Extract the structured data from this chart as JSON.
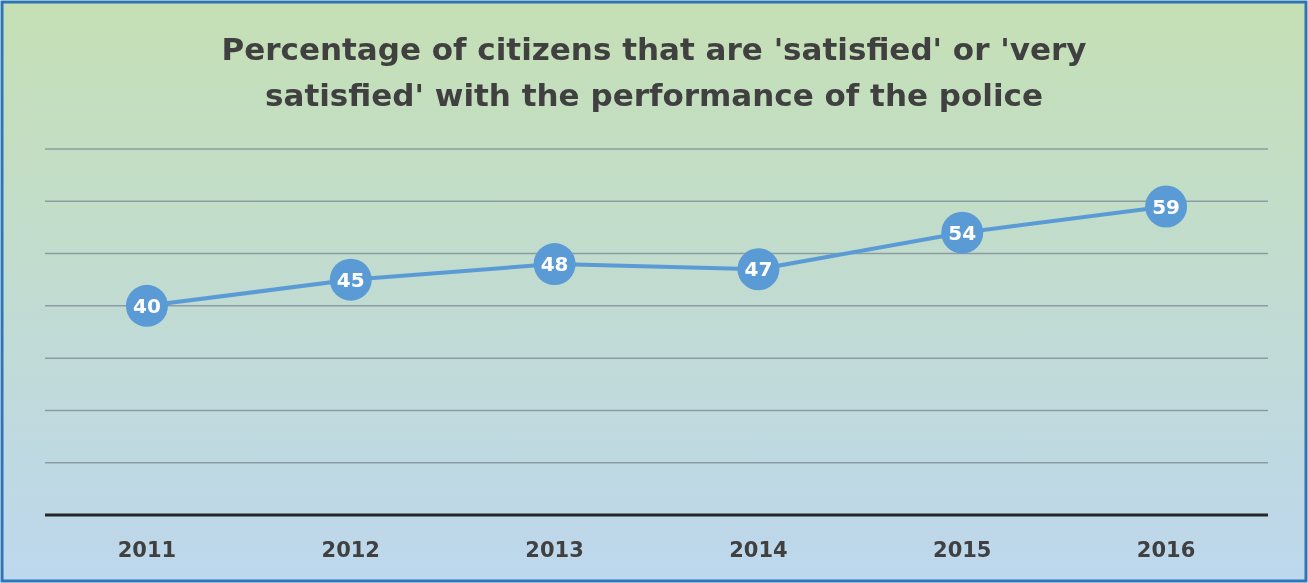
{
  "chart_data": {
    "type": "line",
    "title": "Percentage of citizens that are 'satisfied' or 'very satisfied' with the performance of the police",
    "categories": [
      "2011",
      "2012",
      "2013",
      "2014",
      "2015",
      "2016"
    ],
    "series": [
      {
        "color": "#5b9bd5",
        "values": [
          40,
          45,
          48,
          47,
          54,
          59
        ]
      }
    ],
    "ylim": [
      0,
      70
    ],
    "yticks": [
      {
        "value": 0,
        "label": null
      },
      {
        "value": 10,
        "label": null
      },
      {
        "value": 20,
        "label": null
      },
      {
        "value": 30,
        "label": null
      },
      {
        "value": 40,
        "label": null
      },
      {
        "value": 50,
        "label": null
      },
      {
        "value": 60,
        "label": null
      },
      {
        "value": 70,
        "label": null
      }
    ],
    "tick_labels": "x",
    "grid": "y",
    "data_labels": true,
    "marker": "circle",
    "line_style": "solid"
  }
}
